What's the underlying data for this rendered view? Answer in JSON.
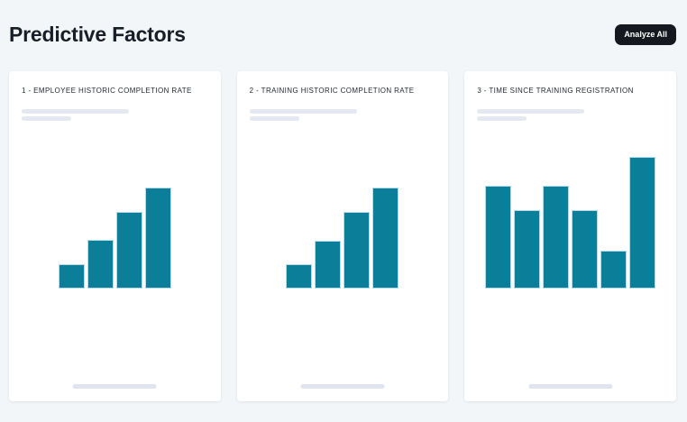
{
  "page": {
    "title": "Predictive Factors",
    "analyze_all_label": "Analyze All"
  },
  "colors": {
    "page_bg": "#f3f6f8",
    "card_bg": "#ffffff",
    "title_text": "#191d27",
    "card_title_text": "#262b36",
    "button_bg": "#15181e",
    "button_text": "#ffffff",
    "bar_fill": "#0b7f9a",
    "bar_border": "#b7dce8",
    "skeleton": "#e4e8f1",
    "skeleton_footer": "#e0e4ee"
  },
  "cards": [
    {
      "title": "1 - EMPLOYEE HISTORIC COMPLETION RATE"
    },
    {
      "title": "2 - TRAINING HISTORIC COMPLETION RATE"
    },
    {
      "title": "3 - TIME SINCE TRAINING REGISTRATION"
    }
  ],
  "chart_data": [
    {
      "type": "bar",
      "title": "1 - EMPLOYEE HISTORIC COMPLETION RATE",
      "categories": [
        "1",
        "2",
        "3",
        "4"
      ],
      "values": [
        27,
        54,
        85,
        112
      ],
      "value_unit": "relative bar height (px), no axes or labels shown",
      "xlabel": "",
      "ylabel": "",
      "axes_visible": false,
      "grid": false,
      "legend": false,
      "bar_color": "#0b7f9a"
    },
    {
      "type": "bar",
      "title": "2 - TRAINING HISTORIC COMPLETION RATE",
      "categories": [
        "1",
        "2",
        "3",
        "4"
      ],
      "values": [
        27,
        53,
        85,
        112
      ],
      "value_unit": "relative bar height (px), no axes or labels shown",
      "xlabel": "",
      "ylabel": "",
      "axes_visible": false,
      "grid": false,
      "legend": false,
      "bar_color": "#0b7f9a"
    },
    {
      "type": "bar",
      "title": "3 - TIME SINCE TRAINING REGISTRATION",
      "categories": [
        "1",
        "2",
        "3",
        "4",
        "5",
        "6"
      ],
      "values": [
        114,
        87,
        114,
        87,
        42,
        146
      ],
      "value_unit": "relative bar height (px), no axes or labels shown",
      "xlabel": "",
      "ylabel": "",
      "axes_visible": false,
      "grid": false,
      "legend": false,
      "bar_color": "#0b7f9a"
    }
  ]
}
